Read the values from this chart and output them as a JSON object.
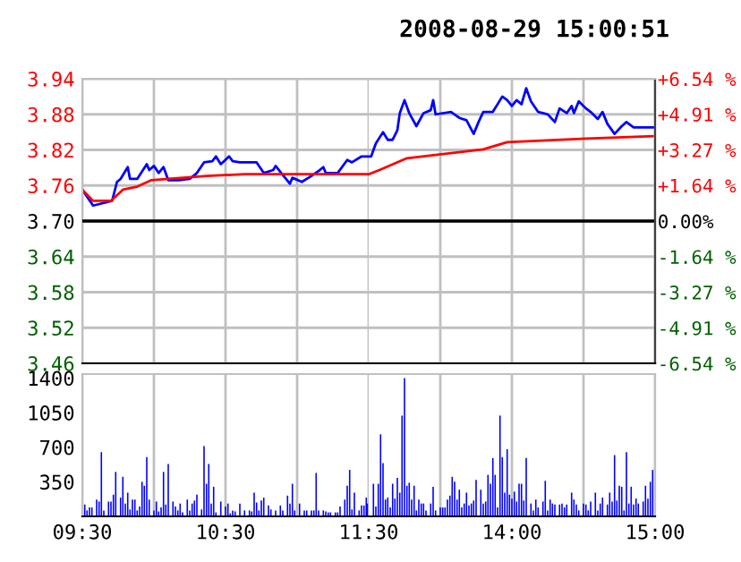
{
  "chart_data": [
    {
      "type": "line",
      "xlim": [
        9.5,
        11.5
      ],
      "xticks": [
        {
          "value": 9.5,
          "label": null
        },
        {
          "value": 10,
          "label": null
        },
        {
          "value": 10.5,
          "label": null
        },
        {
          "value": 11,
          "label": null
        },
        {
          "value": 11.5,
          "label": null
        }
      ],
      "ylim": [
        3.46,
        3.94
      ],
      "yticks": [
        {
          "value": 3.46,
          "label": "3.46"
        },
        {
          "value": 3.52,
          "label": "3.52"
        },
        {
          "value": 3.58,
          "label": "3.58"
        },
        {
          "value": 3.64,
          "label": "3.64"
        },
        {
          "value": 3.7,
          "label": "3.70"
        },
        {
          "value": 3.76,
          "label": "3.76"
        },
        {
          "value": 3.82,
          "label": "3.82"
        },
        {
          "value": 3.88,
          "label": "3.88"
        },
        {
          "value": 3.94,
          "label": "3.94"
        }
      ],
      "grid": true,
      "tick_labels": "y",
      "marker": "none",
      "line_style": "solid",
      "ref_lines": [
        {
          "axis": "y",
          "value": 3.7,
          "color": "#000000",
          "line_style": "solid"
        }
      ],
      "series": [
        {
          "color": "#0000ff",
          "x": [
            9.5,
            9.575,
            9.708,
            9.742,
            9.767,
            9.817,
            9.833,
            9.883,
            9.95,
            9.967,
            10,
            10.033,
            10.067,
            10.1,
            10.175,
            10.25,
            10.3,
            10.35,
            10.408,
            10.433,
            10.467,
            10.525,
            10.55,
            10.6,
            10.717,
            10.767,
            10.833,
            10.85,
            10.883,
            10.95,
            10.967,
            11.033,
            11.1,
            11.158,
            11.183,
            11.2,
            11.283,
            11.35,
            11.383,
            11.45,
            11.5
          ],
          "values": [
            3.753,
            3.726,
            3.734,
            3.766,
            3.771,
            3.791,
            3.771,
            3.771,
            3.796,
            3.786,
            3.793,
            3.781,
            3.791,
            3.769,
            3.769,
            3.771,
            3.781,
            3.799,
            3.801,
            3.809,
            3.796,
            3.809,
            3.801,
            3.799,
            3.799,
            3.781,
            3.786,
            3.793,
            3.783,
            3.763,
            3.773,
            3.766,
            3.776,
            3.786,
            3.791,
            3.781,
            3.781,
            3.803,
            3.799,
            3.809,
            3.809
          ]
        },
        {
          "color": "#ff0000",
          "x": [
            9.5,
            9.575,
            9.7,
            9.783,
            9.883,
            9.983,
            10.1,
            10.367,
            10.633,
            11.383,
            11.5
          ],
          "values": [
            3.753,
            3.734,
            3.734,
            3.753,
            3.758,
            3.769,
            3.771,
            3.776,
            3.779,
            3.779,
            3.779
          ]
        }
      ]
    },
    {
      "type": "line",
      "title": "2008-08-29 15:00:51",
      "xlim": [
        13,
        15
      ],
      "xticks": [
        {
          "value": 13.5,
          "label": null
        },
        {
          "value": 14,
          "label": null
        },
        {
          "value": 14.5,
          "label": null
        },
        {
          "value": 15,
          "label": null
        }
      ],
      "ylim": [
        3.46,
        3.94
      ],
      "yticks": [
        {
          "value": 3.46,
          "label": null
        },
        {
          "value": 3.52,
          "label": null
        },
        {
          "value": 3.58,
          "label": null
        },
        {
          "value": 3.64,
          "label": null
        },
        {
          "value": 3.7,
          "label": null
        },
        {
          "value": 3.76,
          "label": null
        },
        {
          "value": 3.82,
          "label": null
        },
        {
          "value": 3.88,
          "label": null
        },
        {
          "value": 3.94,
          "label": null
        }
      ],
      "y2lim": [
        -6.54,
        6.54
      ],
      "y2ticks": [
        {
          "value": -6.54,
          "label": "-6.54 %"
        },
        {
          "value": -4.91,
          "label": "-4.91 %"
        },
        {
          "value": -3.27,
          "label": "-3.27 %"
        },
        {
          "value": -1.64,
          "label": "-1.64 %"
        },
        {
          "value": 0,
          "label": "0.00%"
        },
        {
          "value": 1.64,
          "label": "+1.64 %"
        },
        {
          "value": 3.27,
          "label": "+3.27 %"
        },
        {
          "value": 4.91,
          "label": "+4.91 %"
        },
        {
          "value": 6.54,
          "label": "+6.54 %"
        }
      ],
      "grid": true,
      "tick_labels": false,
      "marker": "none",
      "line_style": "solid",
      "ref_lines": [
        {
          "axis": "y",
          "value": 3.7,
          "color": "#000000",
          "line_style": "solid"
        }
      ],
      "series": [
        {
          "color": "#0000ff",
          "x": [
            13,
            13.017,
            13.05,
            13.1,
            13.133,
            13.167,
            13.2,
            13.217,
            13.25,
            13.283,
            13.333,
            13.383,
            13.433,
            13.45,
            13.467,
            13.575,
            13.633,
            13.683,
            13.733,
            13.767,
            13.8,
            13.867,
            13.933,
            13.967,
            14,
            14.033,
            14.067,
            14.1,
            14.133,
            14.183,
            14.217,
            14.25,
            14.3,
            14.333,
            14.383,
            14.417,
            14.433,
            14.467,
            14.517,
            14.55,
            14.6,
            14.633,
            14.667,
            14.717,
            14.767,
            14.8,
            14.85,
            15
          ],
          "values": [
            3.809,
            3.809,
            3.831,
            3.85,
            3.837,
            3.837,
            3.853,
            3.882,
            3.904,
            3.882,
            3.86,
            3.882,
            3.887,
            3.904,
            3.88,
            3.884,
            3.874,
            3.87,
            3.847,
            3.867,
            3.884,
            3.884,
            3.91,
            3.904,
            3.894,
            3.904,
            3.897,
            3.924,
            3.902,
            3.884,
            3.882,
            3.88,
            3.867,
            3.89,
            3.882,
            3.894,
            3.882,
            3.902,
            3.89,
            3.884,
            3.872,
            3.884,
            3.864,
            3.847,
            3.86,
            3.867,
            3.858,
            3.858
          ]
        },
        {
          "color": "#ff0000",
          "x": [
            13,
            13.075,
            13.267,
            13.8,
            13.967,
            14.517,
            14.983
          ],
          "values": [
            3.779,
            3.786,
            3.806,
            3.821,
            3.833,
            3.839,
            3.843
          ]
        }
      ]
    },
    {
      "type": "bar",
      "xlim": [
        9.5,
        11.5
      ],
      "xticks": [
        {
          "value": 9.5,
          "label": "09:30"
        },
        {
          "value": 10,
          "label": null
        },
        {
          "value": 10.5,
          "label": "10:30"
        },
        {
          "value": 11,
          "label": null
        },
        {
          "value": 11.5,
          "label": "11:30"
        }
      ],
      "ylim": [
        0,
        1440
      ],
      "yticks": [
        350,
        700,
        1050,
        1400
      ],
      "grid": "x",
      "color": "#0000ff",
      "x": [
        9.517,
        9.533,
        9.55,
        9.567,
        9.6,
        9.617,
        9.633,
        9.65,
        9.683,
        9.7,
        9.717,
        9.733,
        9.767,
        9.783,
        9.8,
        9.817,
        9.833,
        9.85,
        9.867,
        9.883,
        9.9,
        9.917,
        9.933,
        9.95,
        9.967,
        10,
        10.017,
        10.033,
        10.05,
        10.067,
        10.083,
        10.1,
        10.133,
        10.15,
        10.167,
        10.183,
        10.2,
        10.233,
        10.25,
        10.267,
        10.283,
        10.3,
        10.333,
        10.35,
        10.367,
        10.383,
        10.4,
        10.417,
        10.433,
        10.467,
        10.5,
        10.517,
        10.533,
        10.55,
        10.567,
        10.6,
        10.633,
        10.667,
        10.683,
        10.7,
        10.717,
        10.733,
        10.75,
        10.767,
        10.8,
        10.817,
        10.85,
        10.883,
        10.9,
        10.933,
        10.95,
        10.967,
        10.983,
        11.017,
        11.05,
        11.067,
        11.1,
        11.117,
        11.133,
        11.15,
        11.183,
        11.2,
        11.217,
        11.233,
        11.267,
        11.283,
        11.3,
        11.333,
        11.35,
        11.367,
        11.383,
        11.4,
        11.433,
        11.45,
        11.467,
        11.483,
        11.49
      ],
      "values": [
        120,
        60,
        90,
        90,
        170,
        150,
        650,
        60,
        150,
        150,
        220,
        450,
        190,
        400,
        130,
        240,
        70,
        170,
        170,
        60,
        100,
        350,
        310,
        600,
        170,
        60,
        150,
        50,
        90,
        450,
        120,
        530,
        150,
        100,
        60,
        130,
        40,
        170,
        60,
        130,
        160,
        220,
        70,
        710,
        330,
        530,
        130,
        300,
        40,
        150,
        100,
        130,
        30,
        60,
        50,
        130,
        60,
        60,
        50,
        240,
        140,
        60,
        160,
        190,
        110,
        70,
        60,
        110,
        60,
        210,
        130,
        330,
        60,
        130,
        60,
        60,
        60,
        60,
        440,
        60,
        60,
        50,
        40,
        40,
        40,
        40,
        100,
        170,
        310,
        470,
        70,
        240,
        60,
        110,
        110,
        190,
        130
      ]
    },
    {
      "type": "bar",
      "xlim": [
        13,
        15
      ],
      "xticks": [
        {
          "value": 13.5,
          "label": null
        },
        {
          "value": 14,
          "label": "14:00"
        },
        {
          "value": 14.5,
          "label": null
        },
        {
          "value": 15,
          "label": "15:00"
        }
      ],
      "ylim": [
        0,
        1440
      ],
      "yticks": [
        350,
        700,
        1050,
        1400
      ],
      "grid": "x",
      "color": "#0000ff",
      "tick_labels": "x",
      "x": [
        13.033,
        13.05,
        13.067,
        13.083,
        13.1,
        13.117,
        13.133,
        13.15,
        13.167,
        13.183,
        13.2,
        13.217,
        13.233,
        13.25,
        13.267,
        13.283,
        13.3,
        13.317,
        13.333,
        13.35,
        13.367,
        13.383,
        13.4,
        13.433,
        13.45,
        13.467,
        13.5,
        13.517,
        13.533,
        13.55,
        13.567,
        13.583,
        13.6,
        13.617,
        13.633,
        13.65,
        13.667,
        13.683,
        13.7,
        13.717,
        13.733,
        13.75,
        13.783,
        13.8,
        13.817,
        13.833,
        13.85,
        13.867,
        13.883,
        13.9,
        13.917,
        13.933,
        13.95,
        13.967,
        13.983,
        14,
        14.017,
        14.033,
        14.05,
        14.067,
        14.083,
        14.1,
        14.133,
        14.15,
        14.167,
        14.183,
        14.217,
        14.233,
        14.25,
        14.267,
        14.283,
        14.3,
        14.333,
        14.35,
        14.367,
        14.383,
        14.417,
        14.433,
        14.45,
        14.467,
        14.5,
        14.517,
        14.533,
        14.55,
        14.583,
        14.6,
        14.617,
        14.633,
        14.667,
        14.683,
        14.7,
        14.717,
        14.733,
        14.75,
        14.767,
        14.783,
        14.8,
        14.817,
        14.833,
        14.85,
        14.867,
        14.883,
        14.917,
        14.933,
        14.95,
        14.967,
        14.983
      ],
      "values": [
        330,
        100,
        330,
        830,
        540,
        170,
        190,
        90,
        330,
        180,
        390,
        240,
        1020,
        1400,
        310,
        340,
        170,
        310,
        60,
        170,
        130,
        130,
        60,
        130,
        300,
        60,
        90,
        90,
        90,
        170,
        210,
        400,
        350,
        170,
        270,
        90,
        130,
        240,
        110,
        130,
        160,
        370,
        270,
        130,
        150,
        420,
        330,
        590,
        420,
        90,
        1020,
        600,
        240,
        680,
        220,
        180,
        250,
        150,
        330,
        330,
        160,
        590,
        130,
        60,
        170,
        90,
        150,
        360,
        60,
        170,
        130,
        120,
        120,
        130,
        90,
        120,
        240,
        170,
        120,
        60,
        130,
        120,
        60,
        150,
        240,
        60,
        130,
        190,
        120,
        240,
        150,
        620,
        160,
        310,
        300,
        60,
        650,
        130,
        300,
        120,
        180,
        130,
        150,
        310,
        180,
        350,
        470
      ]
    }
  ]
}
